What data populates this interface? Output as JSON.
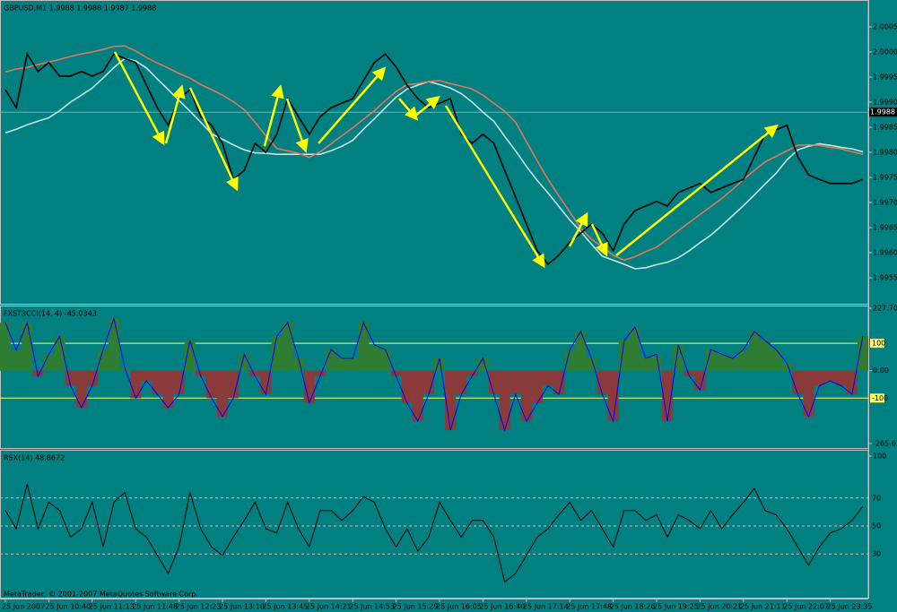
{
  "chart_data": [
    {
      "type": "line",
      "title": "GBPUSD,M1  1.9988 1.9988 1.9987 1.9988",
      "ylim": [
        1.995,
        2.001
      ],
      "yticks": [
        2.0005,
        {
          "value": 2.0,
          "label": "2.0000"
        },
        1.9995,
        {
          "value": 1.999,
          "label": "1.9990"
        },
        1.9985,
        {
          "value": 1.998,
          "label": "1.9980"
        },
        1.9975,
        {
          "value": 1.997,
          "label": "1.9970"
        },
        1.9965,
        {
          "value": 1.996,
          "label": "1.9960"
        },
        1.9955
      ],
      "current_price": 1.9988,
      "series": [
        {
          "color": "#c8e6e6",
          "values": [
            1.99839,
            1.99846,
            1.99855,
            1.99862,
            1.99869,
            1.99883,
            1.999,
            1.99914,
            1.99928,
            1.99948,
            1.99969,
            1.99987,
            1.99982,
            1.99968,
            1.99946,
            1.99925,
            1.99903,
            1.99882,
            1.9986,
            1.99837,
            1.99826,
            1.99815,
            1.99805,
            1.99799,
            1.99798,
            1.99796,
            1.99796,
            1.99796,
            1.99796,
            1.99796,
            1.99803,
            1.99812,
            1.99824,
            1.99846,
            1.99867,
            1.99889,
            1.9991,
            1.99926,
            1.99934,
            1.99941,
            1.99935,
            1.99928,
            1.99917,
            1.999,
            1.9988,
            1.99862,
            1.99832,
            1.99803,
            1.99772,
            1.99744,
            1.99719,
            1.99692,
            1.99665,
            1.99642,
            1.99617,
            1.99593,
            1.99585,
            1.99577,
            1.99568,
            1.9957,
            1.99576,
            1.99581,
            1.9959,
            1.99604,
            1.9962,
            1.99635,
            1.99654,
            1.99674,
            1.99694,
            1.99715,
            1.99737,
            1.99758,
            1.99785,
            1.99805,
            1.99812,
            1.99817,
            1.99814,
            1.9981,
            1.99807,
            1.99801
          ]
        },
        {
          "color": "#e0785a",
          "values": [
            1.9996,
            1.99966,
            1.99969,
            1.99975,
            1.9998,
            1.99985,
            1.99991,
            1.99996,
            2.0,
            2.00005,
            2.00011,
            2.00012,
            2.00002,
            1.99989,
            1.99978,
            1.99968,
            1.99957,
            1.99948,
            1.99935,
            1.99925,
            1.99914,
            1.99901,
            1.99885,
            1.9986,
            1.99833,
            1.99808,
            1.99803,
            1.99798,
            1.9979,
            1.99801,
            1.99817,
            1.99833,
            1.99849,
            1.99866,
            1.99883,
            1.99903,
            1.99921,
            1.99935,
            1.99937,
            1.99941,
            1.99943,
            1.99937,
            1.99932,
            1.99926,
            1.99914,
            1.99898,
            1.99882,
            1.9986,
            1.99821,
            1.99783,
            1.99746,
            1.99713,
            1.99681,
            1.99649,
            1.99627,
            1.99611,
            1.99595,
            1.99585,
            1.99592,
            1.99602,
            1.99611,
            1.99627,
            1.99644,
            1.9966,
            1.99676,
            1.99692,
            1.99708,
            1.99726,
            1.99746,
            1.99764,
            1.99781,
            1.99792,
            1.99803,
            1.99814,
            1.99815,
            1.99814,
            1.9981,
            1.99807,
            1.99801,
            1.99796
          ]
        },
        {
          "color": "#000000",
          "values": [
            1.99925,
            1.99889,
            1.99996,
            1.99961,
            1.99979,
            1.99952,
            1.99952,
            1.99961,
            1.99952,
            1.99961,
            1.99996,
            1.99987,
            1.99979,
            1.99934,
            1.99889,
            1.99854,
            1.99907,
            1.99925,
            1.99871,
            1.99854,
            1.99818,
            1.99746,
            1.99764,
            1.99818,
            1.998,
            1.99836,
            1.99907,
            1.99871,
            1.99836,
            1.99871,
            1.99889,
            1.99898,
            1.99907,
            1.99943,
            1.99979,
            1.99996,
            1.9997,
            1.99934,
            1.99907,
            1.99889,
            1.99898,
            1.99907,
            1.99836,
            1.99818,
            1.99836,
            1.99818,
            1.99764,
            1.99711,
            1.99657,
            1.99604,
            1.99577,
            1.99595,
            1.99621,
            1.99639,
            1.99657,
            1.99639,
            1.99604,
            1.99657,
            1.99684,
            1.99693,
            1.99702,
            1.99693,
            1.9972,
            1.99729,
            1.99738,
            1.9972,
            1.99729,
            1.99738,
            1.99746,
            1.99791,
            1.99836,
            1.99845,
            1.99854,
            1.99791,
            1.99755,
            1.99746,
            1.99738,
            1.99738,
            1.99738,
            1.99746
          ]
        }
      ]
    },
    {
      "type": "bar",
      "title": "FXST3CCI(14, 4) -45.0343",
      "ylim": [
        -265.638,
        227.703
      ],
      "yticks": [
        227.703,
        {
          "value": 0,
          "label": "0.00"
        },
        -265.638
      ],
      "levels": [
        100,
        -100
      ],
      "level_color": "#ffff66",
      "positive_color": "#2e7d32",
      "negative_color": "#8b3a3a",
      "outline_color": "#0000ff",
      "values": [
        175,
        75,
        175,
        -20,
        60,
        125,
        -55,
        -135,
        -55,
        77,
        190,
        10,
        -100,
        -37,
        -86,
        -135,
        -86,
        110,
        -20,
        -100,
        -167,
        -100,
        60,
        -20,
        -86,
        126,
        175,
        45,
        -118,
        -20,
        77,
        45,
        45,
        175,
        94,
        77,
        -20,
        -118,
        -184,
        -86,
        45,
        -217,
        -86,
        -20,
        45,
        -86,
        -217,
        -86,
        -184,
        -118,
        -55,
        -86,
        77,
        143,
        45,
        -86,
        -184,
        110,
        159,
        45,
        60,
        -184,
        94,
        -20,
        -70,
        77,
        60,
        45,
        77,
        143,
        110,
        77,
        28,
        -86,
        -167,
        -55,
        -37,
        -55,
        -86,
        126
      ]
    },
    {
      "type": "line",
      "title": "RSX(14) 48.8672",
      "ylim": [
        0,
        100
      ],
      "yticks": [
        100
      ],
      "levels": [
        70,
        50,
        30
      ],
      "color": "#000000",
      "categories": [
        "25 Jun 2007",
        null,
        null,
        null,
        "25 Jun 10:40",
        null,
        null,
        null,
        "25 Jun 11:13",
        null,
        null,
        null,
        "25 Jun 11:48",
        null,
        null,
        null,
        "25 Jun 12:23",
        null,
        null,
        null,
        "25 Jun 13:10",
        null,
        null,
        null,
        "25 Jun 13:45",
        null,
        null,
        null,
        "25 Jun 14:21",
        null,
        null,
        null,
        "25 Jun 14:53",
        null,
        null,
        null,
        "25 Jun 15:29",
        null,
        null,
        null,
        "25 Jun 16:05",
        null,
        null,
        null,
        "25 Jun 16:40",
        null,
        null,
        null,
        "25 Jun 17:14",
        null,
        null,
        null,
        "25 Jun 17:48",
        null,
        null,
        null,
        "25 Jun 18:26",
        null,
        null,
        null,
        "25 Jun 19:25",
        null,
        null,
        null,
        "25 Jun 20:21",
        null,
        null,
        null,
        "25 Jun 21:11",
        null,
        null,
        null,
        "25 Jun 22:07",
        null,
        null,
        null,
        "25 Jun 23:35",
        null,
        null,
        null
      ],
      "values": [
        61,
        48,
        80,
        48,
        67,
        61,
        42,
        48,
        67,
        35,
        67,
        74,
        48,
        42,
        29,
        16,
        35,
        74,
        48,
        35,
        29,
        42,
        54,
        67,
        48,
        45,
        67,
        48,
        35,
        61,
        61,
        54,
        61,
        71,
        67,
        48,
        35,
        48,
        32,
        42,
        67,
        54,
        42,
        54,
        54,
        42,
        10,
        16,
        29,
        42,
        48,
        58,
        67,
        54,
        61,
        48,
        35,
        61,
        61,
        54,
        58,
        42,
        58,
        54,
        48,
        61,
        48,
        58,
        67,
        77,
        61,
        58,
        48,
        35,
        22,
        35,
        45,
        48,
        54,
        64
      ]
    }
  ],
  "footer": "MetaTrader, © 2001-2007 MetaQuotes Software Corp."
}
